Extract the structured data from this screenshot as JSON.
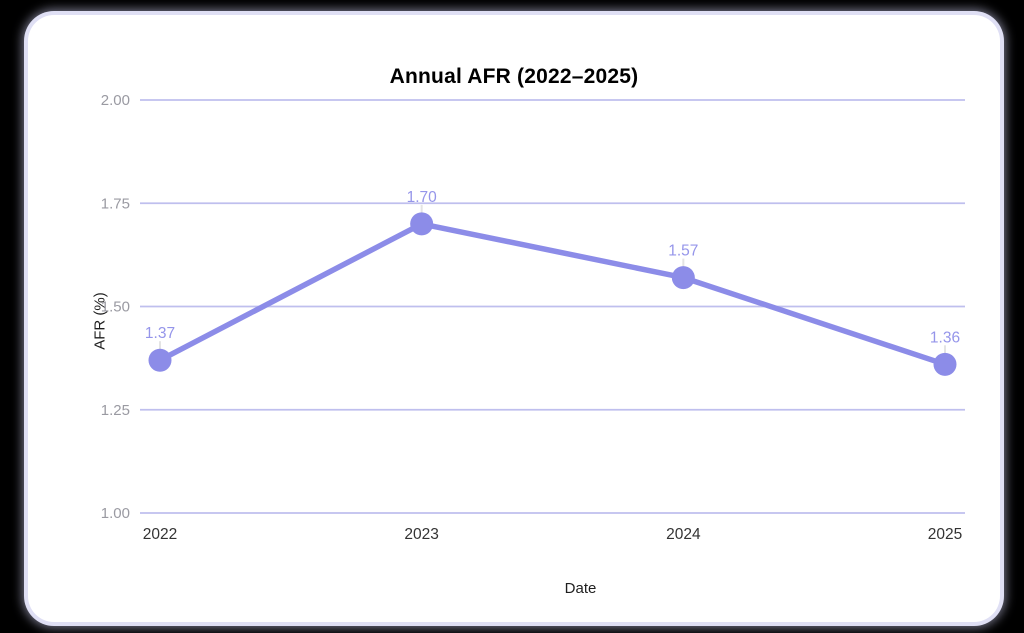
{
  "page": {
    "background_color": "#000000",
    "card_background_color": "#ffffff",
    "card_glow_color": "#dfdff4"
  },
  "chart_data": {
    "type": "line",
    "title": "Annual AFR (2022–2025)",
    "xlabel": "Date",
    "ylabel": "AFR (%)",
    "categories": [
      "2022",
      "2023",
      "2024",
      "2025"
    ],
    "series": [
      {
        "name": "Annual AFR",
        "values": [
          1.37,
          1.7,
          1.57,
          1.36
        ],
        "data_labels": [
          "1.37",
          "1.70",
          "1.57",
          "1.36"
        ]
      }
    ],
    "ylim": [
      1.0,
      2.0
    ],
    "yticks": [
      1.0,
      1.25,
      1.5,
      1.75,
      2.0
    ],
    "ytick_labels": [
      "1.00",
      "1.25",
      "1.50",
      "1.75",
      "2.00"
    ],
    "grid": true,
    "legend_position": "none",
    "colors": {
      "line": "#8c8ce8",
      "marker": "#8c8ce8",
      "data_label": "#9595ea",
      "gridline": "#bfbfee",
      "ytick_label": "#9a9aa2",
      "xtick_label": "#333333",
      "axis_title": "#1f1f1f",
      "title": "#000000",
      "leader_line": "#e4e4e4"
    }
  }
}
